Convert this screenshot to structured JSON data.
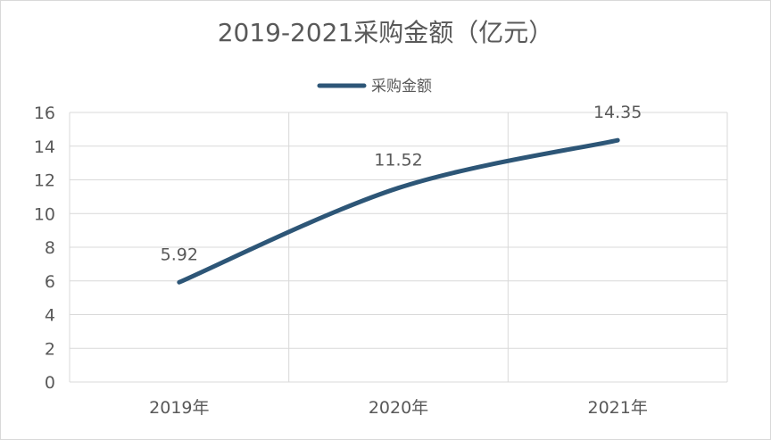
{
  "chart_data": {
    "type": "line",
    "title": "2019-2021采购金额（亿元）",
    "categories": [
      "2019年",
      "2020年",
      "2021年"
    ],
    "series": [
      {
        "name": "采购金额",
        "values": [
          5.92,
          11.52,
          14.35
        ],
        "data_labels": [
          "5.92",
          "11.52",
          "14.35"
        ],
        "color": "#2d5677",
        "smooth": true
      }
    ],
    "ylim": [
      0,
      16
    ],
    "yticks": [
      0,
      2,
      4,
      6,
      8,
      10,
      12,
      14,
      16
    ],
    "xlabel": "",
    "ylabel": "",
    "grid": true,
    "legend": "top-center"
  },
  "colors": {
    "grid": "#d9d9d9",
    "text": "#595959",
    "series": "#2d5677"
  }
}
